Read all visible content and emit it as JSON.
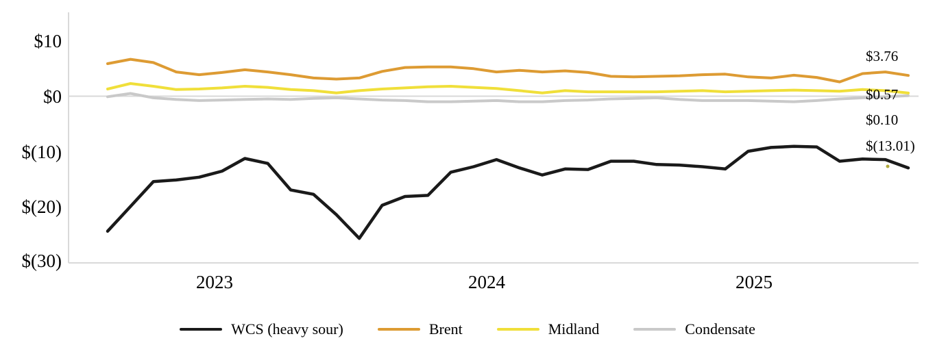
{
  "chart_data": {
    "type": "line",
    "title": "",
    "xlabel": "",
    "ylabel": "",
    "ylim": [
      -30,
      10
    ],
    "grid": "zero-line-only",
    "legend_position": "bottom",
    "x_labels": [
      "2023",
      "2024",
      "2025"
    ],
    "y_ticks": [
      "$10",
      "$0",
      "$(10)",
      "$(20)",
      "$(30)"
    ],
    "y_tick_values": [
      10,
      0,
      -10,
      -20,
      -30
    ],
    "axis_color": "#d9d9d9",
    "series": [
      {
        "id": "wcs",
        "name": "WCS (heavy sour)",
        "color": "#1a1a1a",
        "width": 4.5,
        "end_label": "$(13.01)",
        "values": [
          -24.5,
          -20.0,
          -15.5,
          -15.2,
          -14.7,
          -13.6,
          -11.3,
          -12.2,
          -17.0,
          -17.8,
          -21.5,
          -25.8,
          -19.8,
          -18.2,
          -18.0,
          -13.8,
          -12.8,
          -11.5,
          -13.0,
          -14.3,
          -13.2,
          -13.3,
          -11.8,
          -11.8,
          -12.4,
          -12.5,
          -12.8,
          -13.2,
          -10.0,
          -9.3,
          -9.1,
          -9.2,
          -11.8,
          -11.4,
          -11.5,
          -13.01
        ]
      },
      {
        "id": "brent",
        "name": "Brent",
        "color": "#dd9b33",
        "width": 4,
        "end_label": "$3.76",
        "values": [
          5.9,
          6.7,
          6.1,
          4.4,
          3.9,
          4.3,
          4.8,
          4.4,
          3.9,
          3.3,
          3.1,
          3.3,
          4.5,
          5.2,
          5.3,
          5.3,
          5.0,
          4.4,
          4.7,
          4.4,
          4.6,
          4.3,
          3.6,
          3.5,
          3.6,
          3.7,
          3.9,
          4.0,
          3.5,
          3.3,
          3.8,
          3.4,
          2.6,
          4.1,
          4.4,
          3.76
        ]
      },
      {
        "id": "midland",
        "name": "Midland",
        "color": "#f0df3a",
        "width": 4,
        "end_label": "$0.57",
        "values": [
          1.3,
          2.3,
          1.8,
          1.2,
          1.3,
          1.5,
          1.8,
          1.6,
          1.2,
          1.0,
          0.6,
          1.0,
          1.3,
          1.5,
          1.7,
          1.8,
          1.6,
          1.4,
          1.0,
          0.6,
          1.0,
          0.8,
          0.8,
          0.8,
          0.8,
          0.9,
          1.0,
          0.8,
          0.9,
          1.0,
          1.1,
          1.0,
          0.9,
          1.2,
          1.0,
          0.57
        ]
      },
      {
        "id": "condensate",
        "name": "Condensate",
        "color": "#c9c9c9",
        "width": 4,
        "end_label": "$0.10",
        "values": [
          -0.1,
          0.5,
          -0.3,
          -0.6,
          -0.8,
          -0.7,
          -0.6,
          -0.5,
          -0.6,
          -0.4,
          -0.3,
          -0.5,
          -0.7,
          -0.8,
          -1.0,
          -1.0,
          -0.9,
          -0.8,
          -1.0,
          -1.0,
          -0.8,
          -0.7,
          -0.5,
          -0.4,
          -0.3,
          -0.6,
          -0.8,
          -0.8,
          -0.8,
          -0.9,
          -1.0,
          -0.8,
          -0.5,
          -0.3,
          -0.1,
          0.1
        ]
      }
    ]
  }
}
